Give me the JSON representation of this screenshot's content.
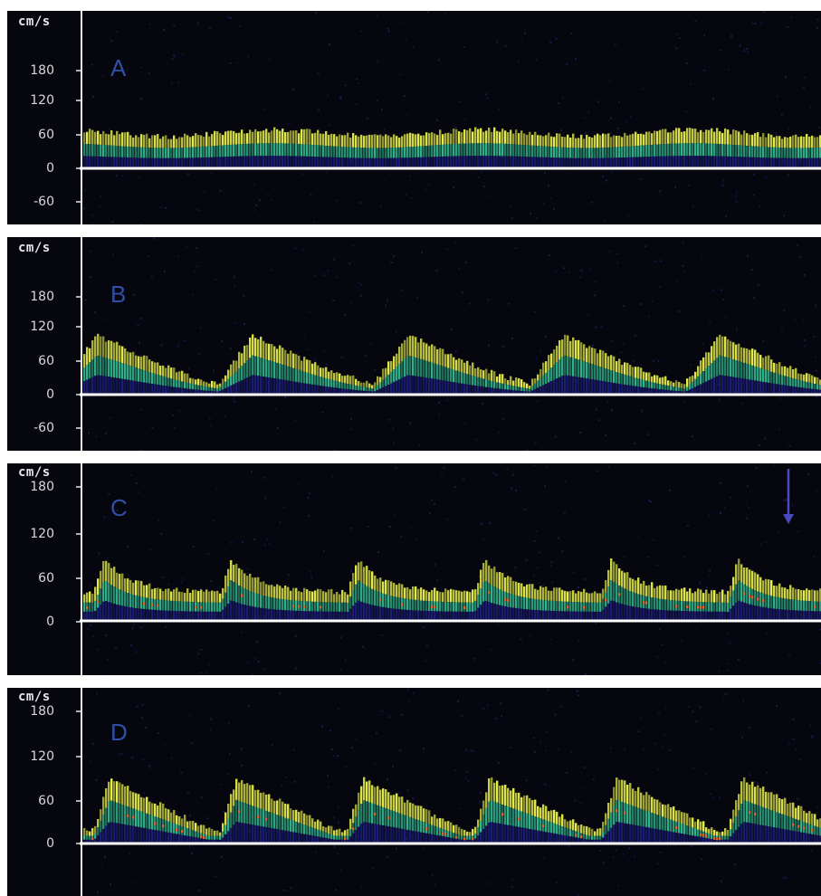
{
  "colors": {
    "background": "#06060f",
    "baseline": "#ffffff",
    "axis": "#e8e8e8",
    "label": "#2f4fa8",
    "spectrum_low": "#1b1e78",
    "spectrum_mid": "#2fb88f",
    "spectrum_high": "#e8f04a",
    "spectrum_peak": "#e6602a",
    "arrow": "#4a4ac0"
  },
  "panels": [
    {
      "label": "A",
      "unit": "cm/s",
      "ticks": [
        "180",
        "120",
        "60",
        "0",
        "-60"
      ],
      "pattern": "continuous"
    },
    {
      "label": "B",
      "unit": "cm/s",
      "ticks": [
        "180",
        "120",
        "60",
        "0",
        "-60"
      ],
      "pattern": "phasic"
    },
    {
      "label": "C",
      "unit": "cm/s",
      "ticks": [
        "180",
        "120",
        "60",
        "0"
      ],
      "pattern": "pulsatile",
      "arrow_icon": "down-arrow-icon"
    },
    {
      "label": "D",
      "unit": "cm/s",
      "ticks": [
        "180",
        "120",
        "60",
        "0"
      ],
      "pattern": "pulsatile-fast"
    }
  ]
}
